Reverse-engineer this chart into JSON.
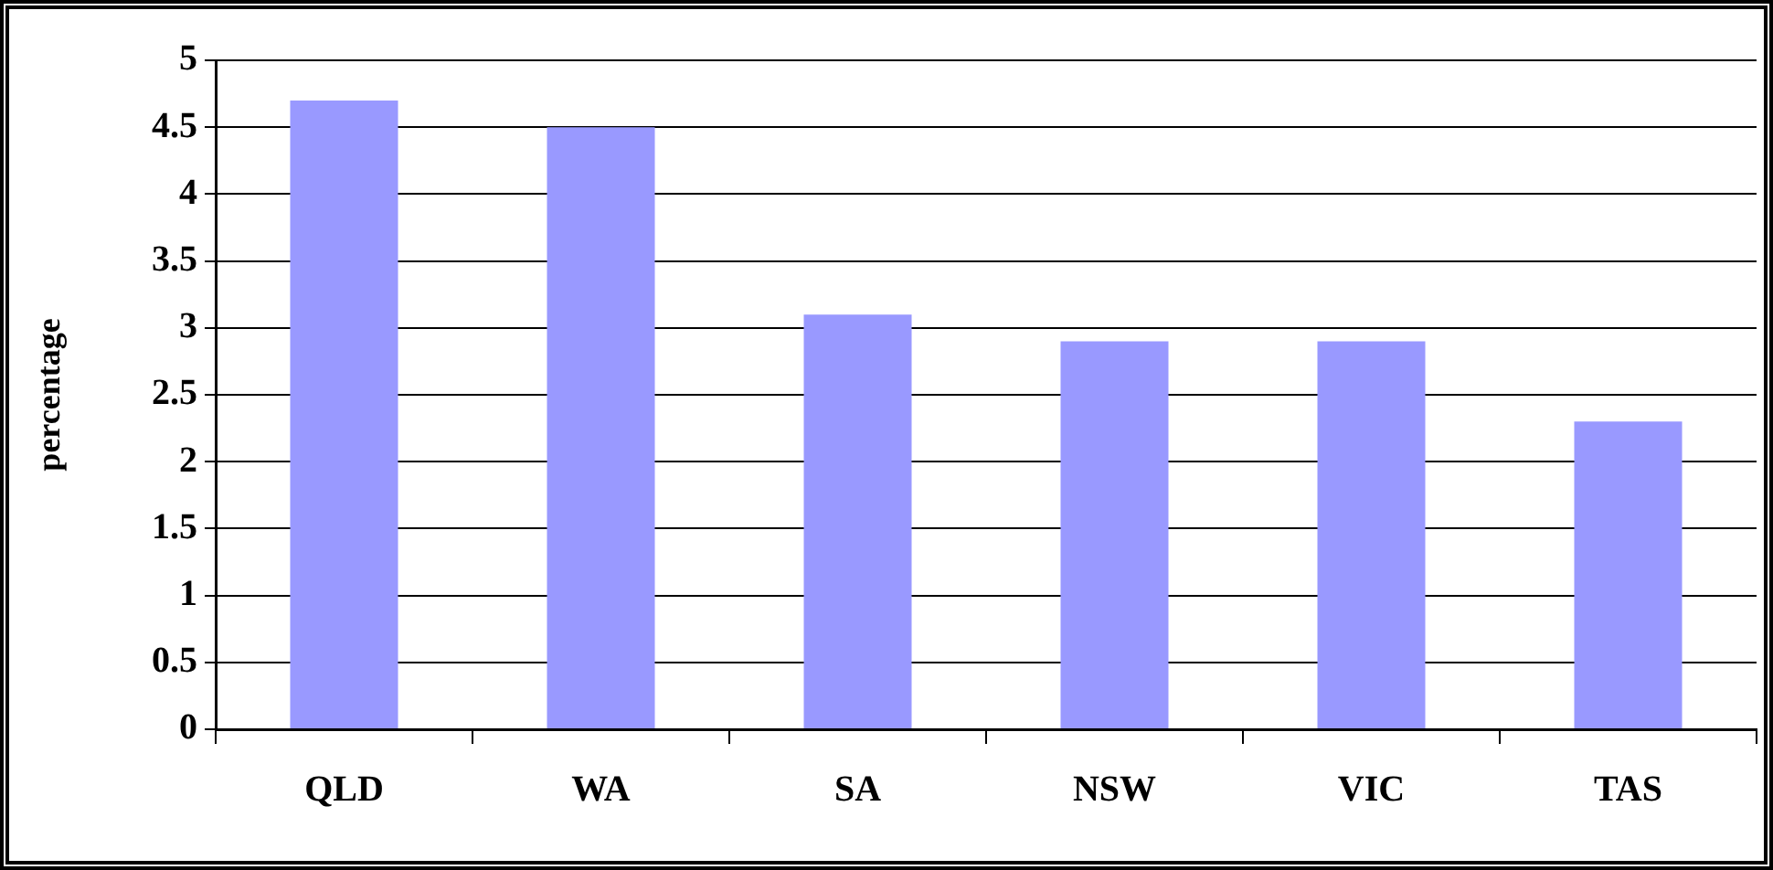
{
  "chart_data": {
    "type": "bar",
    "ylabel": "percentage",
    "categories": [
      "QLD",
      "WA",
      "SA",
      "NSW",
      "VIC",
      "TAS"
    ],
    "values": [
      4.7,
      4.5,
      3.1,
      2.9,
      2.9,
      2.3
    ],
    "color": "#9999ff",
    "ylim": [
      0,
      5
    ],
    "yticks": [
      0,
      0.5,
      1,
      1.5,
      2,
      2.5,
      3,
      3.5,
      4,
      4.5,
      5
    ],
    "grid": "y",
    "legend": false
  }
}
